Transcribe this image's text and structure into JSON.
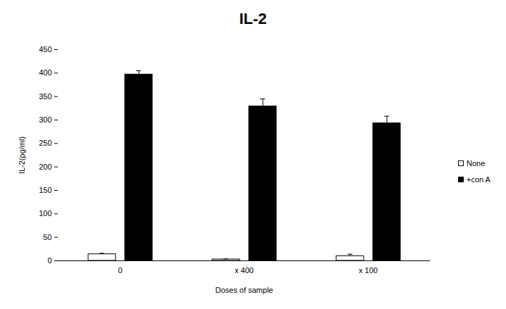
{
  "chart_data": {
    "type": "bar",
    "title": "IL-2",
    "x_label": "Doses of sample",
    "y_label": "IL-2(pg/ml)",
    "categories": [
      "0",
      "x 400",
      "x 100"
    ],
    "series": [
      {
        "name": "None",
        "color": "#ffffff",
        "values": [
          14,
          3,
          10
        ],
        "errors": [
          2,
          1,
          4
        ]
      },
      {
        "name": "+con A",
        "color": "#000000",
        "values": [
          397,
          329,
          293
        ],
        "errors": [
          8,
          16,
          15
        ]
      }
    ],
    "ylim": [
      0,
      450
    ],
    "yticks": [
      0,
      50,
      100,
      150,
      200,
      250,
      300,
      350,
      400,
      450
    ],
    "grid": false,
    "legend": "right"
  }
}
